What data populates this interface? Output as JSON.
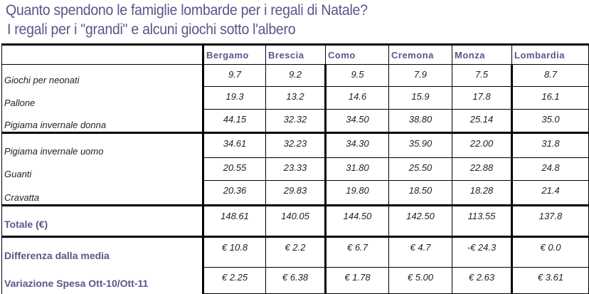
{
  "title": "Quanto spendono le famiglie lombarde per i regali di Natale?",
  "subtitle": "I regali per i \"grandi\" e alcuni giochi sotto l'albero",
  "columns": [
    "Bergamo",
    "Brescia",
    "Como",
    "Cremona",
    "Monza",
    "Lombardia"
  ],
  "rows": [
    {
      "label": "Giochi per neonati",
      "values": [
        "9.7",
        "9.2",
        "9.5",
        "7.9",
        "7.5",
        "8.7"
      ]
    },
    {
      "label": "Pallone",
      "values": [
        "19.3",
        "13.2",
        "14.6",
        "15.9",
        "17.8",
        "16.1"
      ]
    },
    {
      "label": "Pigiama invernale donna",
      "values": [
        "44.15",
        "32.32",
        "34.50",
        "38.80",
        "25.14",
        "35.0"
      ]
    },
    {
      "label": "Pigiama invernale uomo",
      "values": [
        "34.61",
        "32.23",
        "34.30",
        "35.90",
        "22.00",
        "31.8"
      ]
    },
    {
      "label": "Guanti",
      "values": [
        "20.55",
        "23.33",
        "31.80",
        "25.50",
        "22.88",
        "24.8"
      ]
    },
    {
      "label": "Cravatta",
      "values": [
        "20.36",
        "29.83",
        "19.80",
        "18.50",
        "18.28",
        "21.4"
      ]
    },
    {
      "label": "Totale (€)",
      "values": [
        "148.61",
        "140.05",
        "144.50",
        "142.50",
        "113.55",
        "137.8"
      ]
    },
    {
      "label": "Differenza dalla media",
      "values": [
        "€ 10.8",
        "€ 2.2",
        "€ 6.7",
        "€ 4.7",
        "-€ 24.3",
        "€ 0.0"
      ]
    },
    {
      "label": "Variazione Spesa Ott-10/Ott-11",
      "values": [
        "€ 2.25",
        "€ 6.38",
        "€ 1.78",
        "€ 5.00",
        "€ 2.63",
        "€ 3.61"
      ]
    }
  ]
}
